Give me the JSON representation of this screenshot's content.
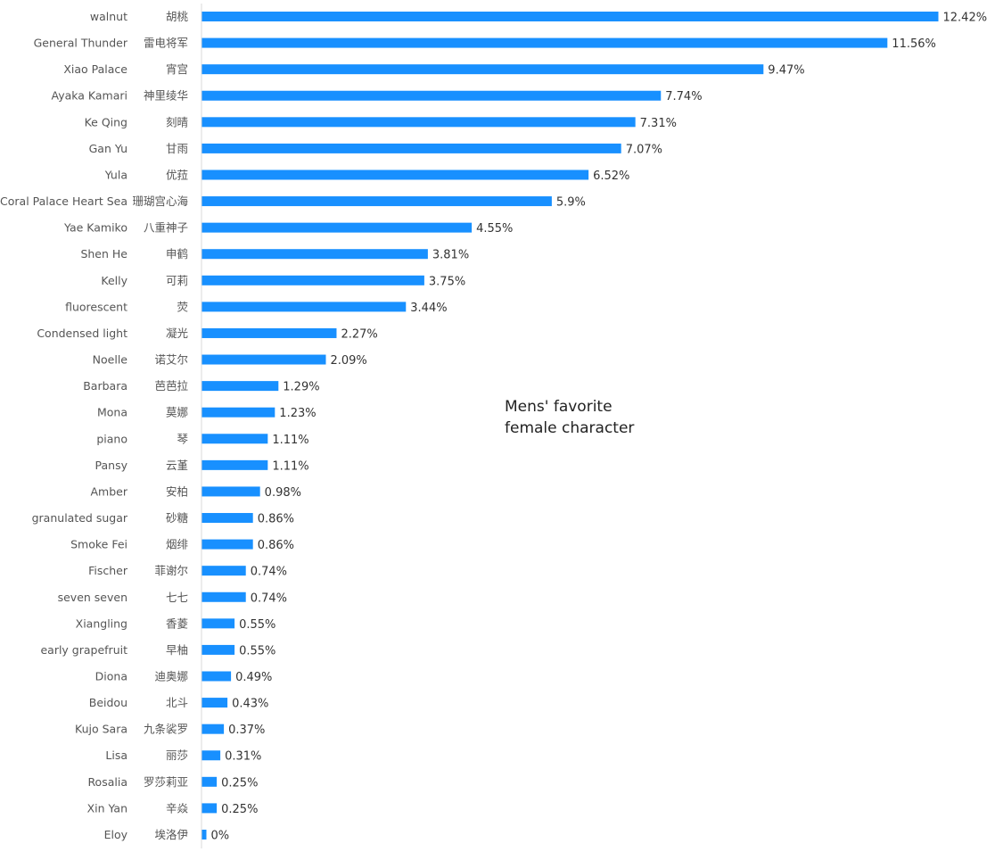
{
  "chart_data": {
    "type": "bar",
    "orientation": "horizontal",
    "title_lines": [
      "Mens' favorite",
      "female character"
    ],
    "categories_en": [
      "walnut",
      "General Thunder",
      "Xiao Palace",
      "Ayaka Kamari",
      "Ke Qing",
      "Gan Yu",
      "Yula",
      "Coral Palace Heart Sea",
      "Yae Kamiko",
      "Shen He",
      "Kelly",
      "fluorescent",
      "Condensed light",
      "Noelle",
      "Barbara",
      "Mona",
      "piano",
      "Pansy",
      "Amber",
      "granulated sugar",
      "Smoke Fei",
      "Fischer",
      "seven seven",
      "Xiangling",
      "early grapefruit",
      "Diona",
      "Beidou",
      "Kujo Sara",
      "Lisa",
      "Rosalia",
      "Xin Yan",
      "Eloy"
    ],
    "categories_zh": [
      "胡桃",
      "雷电将军",
      "宵宫",
      "神里绫华",
      "刻晴",
      "甘雨",
      "优菈",
      "珊瑚宫心海",
      "八重神子",
      "申鹤",
      "可莉",
      "荧",
      "凝光",
      "诺艾尔",
      "芭芭拉",
      "莫娜",
      "琴",
      "云堇",
      "安柏",
      "砂糖",
      "烟绯",
      "菲谢尔",
      "七七",
      "香菱",
      "早柚",
      "迪奥娜",
      "北斗",
      "九条裟罗",
      "丽莎",
      "罗莎莉亚",
      "辛焱",
      "埃洛伊"
    ],
    "values": [
      12.42,
      11.56,
      9.47,
      7.74,
      7.31,
      7.07,
      6.52,
      5.9,
      4.55,
      3.81,
      3.75,
      3.44,
      2.27,
      2.09,
      1.29,
      1.23,
      1.11,
      1.11,
      0.98,
      0.86,
      0.86,
      0.74,
      0.74,
      0.55,
      0.55,
      0.49,
      0.43,
      0.37,
      0.31,
      0.25,
      0.25,
      0
    ],
    "value_labels": [
      "12.42%",
      "11.56%",
      "9.47%",
      "7.74%",
      "7.31%",
      "7.07%",
      "6.52%",
      "5.9%",
      "4.55%",
      "3.81%",
      "3.75%",
      "3.44%",
      "2.27%",
      "2.09%",
      "1.29%",
      "1.23%",
      "1.11%",
      "1.11%",
      "0.98%",
      "0.86%",
      "0.86%",
      "0.74%",
      "0.74%",
      "0.55%",
      "0.55%",
      "0.49%",
      "0.43%",
      "0.37%",
      "0.31%",
      "0.25%",
      "0.25%",
      "0%"
    ],
    "xlim": [
      0,
      12.42
    ],
    "bar_color": "#1890ff",
    "axis_color": "#d9d9d9",
    "grid": false,
    "legend": "none"
  }
}
